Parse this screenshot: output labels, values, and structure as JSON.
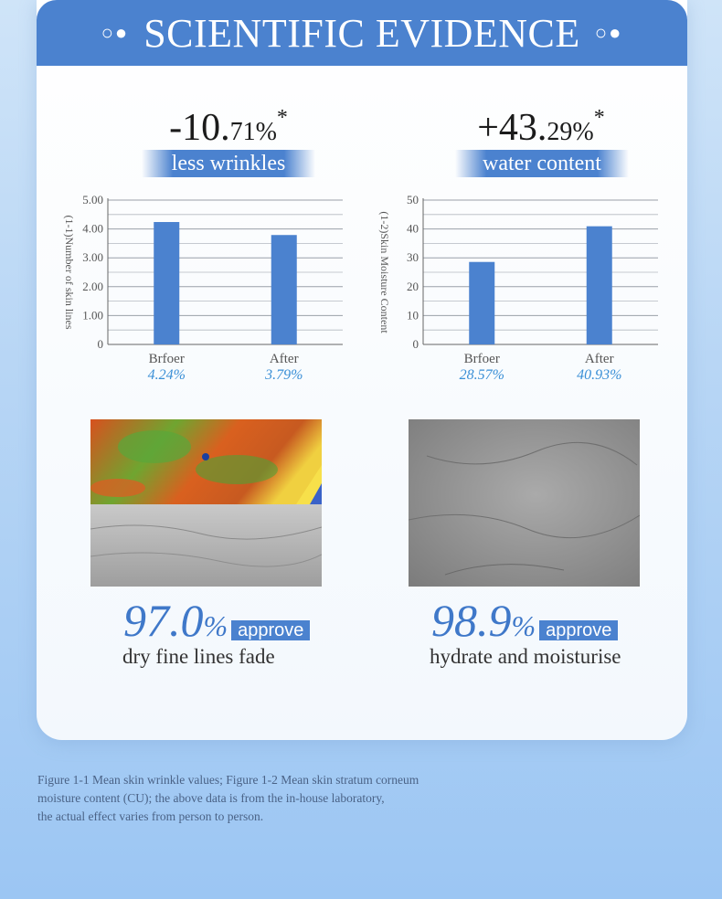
{
  "banner": {
    "title": "SCIENTIFIC EVIDENCE",
    "deco_left": "○●",
    "deco_right": "○●"
  },
  "stats": [
    {
      "value_big": "-10.",
      "value_small": "71%",
      "mark": "*",
      "label": "less wrinkles"
    },
    {
      "value_big": "+43.",
      "value_small": "29%",
      "mark": "*",
      "label": "water content"
    }
  ],
  "chart_data": [
    {
      "type": "bar",
      "categories": [
        "Brfoer",
        "After"
      ],
      "values": [
        4.24,
        3.79
      ],
      "value_labels": [
        "4.24%",
        "3.79%"
      ],
      "ylabel": "(1-1)Number of skin lines",
      "ylim": [
        0,
        5
      ],
      "yticks": [
        "0",
        "1.00",
        "2.00",
        "3.00",
        "4.00",
        "5.00"
      ],
      "grid": true,
      "color": "#4b82cf"
    },
    {
      "type": "bar",
      "categories": [
        "Brfoer",
        "After"
      ],
      "values": [
        28.57,
        40.93
      ],
      "value_labels": [
        "28.57%",
        "40.93%"
      ],
      "ylabel": "(1-2)Skin Moisture Content",
      "ylim": [
        0,
        50
      ],
      "yticks": [
        "0",
        "10",
        "20",
        "30",
        "40",
        "50"
      ],
      "grid": true,
      "color": "#4b82cf"
    }
  ],
  "results": [
    {
      "num": "97.0",
      "unit": "%",
      "badge": "approve",
      "caption": "dry fine lines fade"
    },
    {
      "num": "98.9",
      "unit": "%",
      "badge": "approve",
      "caption": "hydrate and moisturise"
    }
  ],
  "footnote": [
    "Figure 1-1 Mean skin wrinkle values; Figure 1-2 Mean skin stratum corneum",
    "moisture content (CU); the above data is from the in-house laboratory,",
    "the actual effect varies from person to person."
  ],
  "colors": {
    "accent": "#4b82cf",
    "value_label": "#3a8fd6"
  }
}
